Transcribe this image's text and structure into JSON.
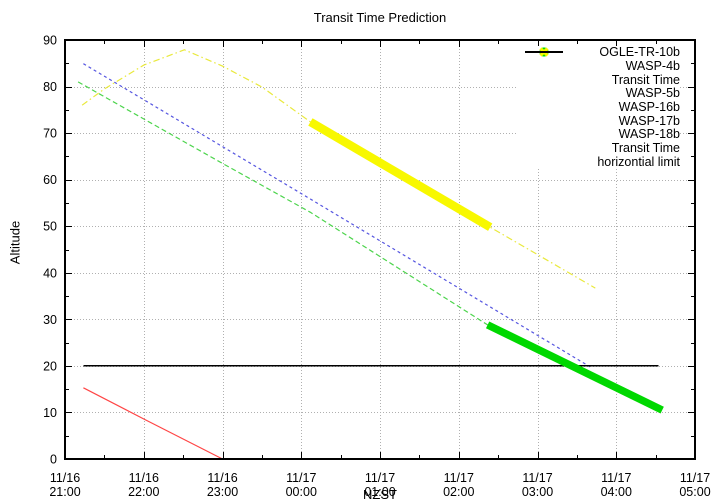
{
  "chart_data": {
    "type": "line",
    "title": "Transit Time Prediction",
    "xlabel": "NZST",
    "ylabel": "Altitude",
    "legend_position": "top-right",
    "grid": true,
    "grid_color": "#b0b0b0",
    "border_color": "#000000",
    "x_axis": {
      "ticks": [
        {
          "date": "11/16",
          "time": "21:00"
        },
        {
          "date": "11/16",
          "time": "22:00"
        },
        {
          "date": "11/16",
          "time": "23:00"
        },
        {
          "date": "11/17",
          "time": "00:00"
        },
        {
          "date": "11/17",
          "time": "01:00"
        },
        {
          "date": "11/17",
          "time": "02:00"
        },
        {
          "date": "11/17",
          "time": "03:00"
        },
        {
          "date": "11/17",
          "time": "04:00"
        },
        {
          "date": "11/17",
          "time": "05:00"
        }
      ],
      "minor_tick_minutes": 30
    },
    "y_axis": {
      "min": 0,
      "max": 90,
      "tick_step": 10,
      "minor_step": 5
    },
    "series": [
      {
        "name": "OGLE-TR-10b",
        "kind": "line",
        "style": "solid",
        "color": "#ff4545",
        "points": [
          [
            "11/16 21:14",
            15.3
          ],
          [
            "11/16 22:00",
            8.6
          ],
          [
            "11/16 23:00",
            0.0
          ]
        ]
      },
      {
        "name": "WASP-4b",
        "kind": "line",
        "style": "dashed",
        "color": "#4cd44c",
        "points": [
          [
            "11/16 21:10",
            81.0
          ],
          [
            "11/16 23:00",
            63.5
          ],
          [
            "11/17 00:07",
            53.0
          ],
          [
            "11/17 02:22",
            28.8
          ],
          [
            "11/17 04:35",
            10.5
          ]
        ]
      },
      {
        "name": "Transit Time",
        "kind": "band",
        "marker": "plus",
        "color": "#00d800",
        "width": 7.5,
        "points": [
          [
            "11/17 02:22",
            28.8
          ],
          [
            "11/17 04:35",
            10.5
          ]
        ]
      },
      {
        "name": "WASP-5b",
        "kind": "line",
        "style": "dashed-fine",
        "color": "#5555e0",
        "points": [
          [
            "11/16 21:14",
            84.9
          ],
          [
            "11/17 00:00",
            57.0
          ],
          [
            "11/17 03:40",
            19.8
          ]
        ]
      },
      {
        "name": "WASP-16b",
        "kind": "legend-only",
        "style": "dotted",
        "color": "#f07ff0",
        "points": []
      },
      {
        "name": "WASP-17b",
        "kind": "legend-only",
        "style": "dashdot",
        "color": "#55e8e8",
        "points": []
      },
      {
        "name": "WASP-18b",
        "kind": "line",
        "style": "dashdot",
        "color": "#e9e93c",
        "points": [
          [
            "11/16 21:13",
            76.0
          ],
          [
            "11/16 21:30",
            79.5
          ],
          [
            "11/16 22:00",
            84.6
          ],
          [
            "11/16 22:31",
            87.9
          ],
          [
            "11/16 23:00",
            84.4
          ],
          [
            "11/16 23:30",
            79.9
          ],
          [
            "11/17 00:07",
            72.4
          ],
          [
            "11/17 01:00",
            63.6
          ],
          [
            "11/17 02:24",
            49.8
          ],
          [
            "11/17 03:00",
            43.9
          ],
          [
            "11/17 03:44",
            36.7
          ]
        ]
      },
      {
        "name": "Transit Time",
        "kind": "band",
        "marker": "x",
        "color": "#f8f800",
        "width": 8.5,
        "points": [
          [
            "11/17 00:07",
            72.4
          ],
          [
            "11/17 02:24",
            49.8
          ]
        ]
      },
      {
        "name": "horizontial limit",
        "kind": "line",
        "style": "solid",
        "color": "#000000",
        "width": 1.6,
        "points": [
          [
            "11/16 21:14",
            20.0
          ],
          [
            "11/17 04:32",
            20.0
          ]
        ]
      }
    ]
  }
}
